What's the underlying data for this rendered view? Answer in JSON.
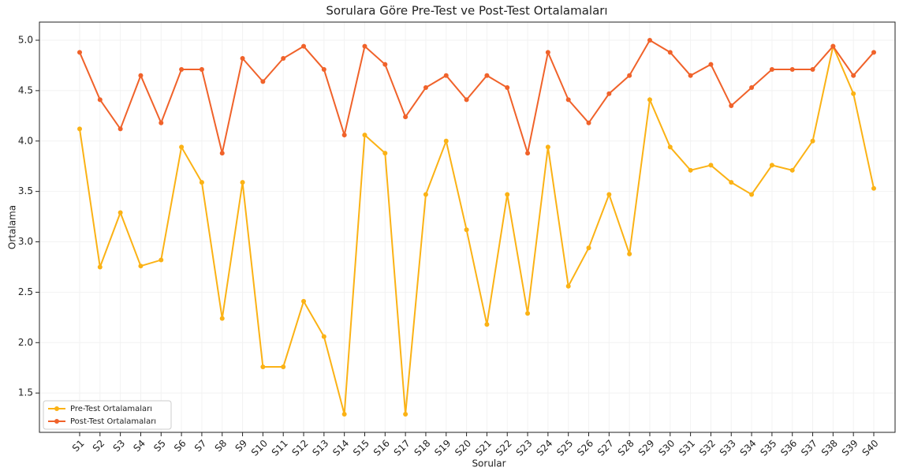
{
  "chart_data": {
    "type": "line",
    "title": "Sorulara Göre Pre-Test ve Post-Test Ortalamaları",
    "x_label": "Sorular",
    "y_label": "Ortalama",
    "categories": [
      "S1",
      "S2",
      "S3",
      "S4",
      "S5",
      "S6",
      "S7",
      "S8",
      "S9",
      "S10",
      "S11",
      "S12",
      "S13",
      "S14",
      "S15",
      "S16",
      "S17",
      "S18",
      "S19",
      "S20",
      "S21",
      "S22",
      "S23",
      "S24",
      "S25",
      "S26",
      "S27",
      "S28",
      "S29",
      "S30",
      "S31",
      "S32",
      "S33",
      "S34",
      "S35",
      "S36",
      "S37",
      "S38",
      "S39",
      "S40"
    ],
    "series": [
      {
        "name": "Pre-Test Ortalamaları",
        "color": "#fbb215",
        "values": [
          4.12,
          2.75,
          3.29,
          2.76,
          2.82,
          3.94,
          3.59,
          2.24,
          3.59,
          1.76,
          1.76,
          2.41,
          2.06,
          1.29,
          4.06,
          3.88,
          1.29,
          3.47,
          4.0,
          3.12,
          2.18,
          3.47,
          2.29,
          3.94,
          2.56,
          2.94,
          3.47,
          2.88,
          4.41,
          3.94,
          3.71,
          3.76,
          3.59,
          3.47,
          3.76,
          3.71,
          4.0,
          4.94,
          4.47,
          3.53
        ]
      },
      {
        "name": "Post-Test Ortalamaları",
        "color": "#f0622a",
        "values": [
          4.88,
          4.41,
          4.12,
          4.65,
          4.18,
          4.71,
          4.71,
          3.88,
          4.82,
          4.59,
          4.82,
          4.94,
          4.71,
          4.06,
          4.94,
          4.76,
          4.24,
          4.53,
          4.65,
          4.41,
          4.65,
          4.53,
          3.88,
          4.88,
          4.41,
          4.18,
          4.47,
          4.65,
          5.0,
          4.88,
          4.65,
          4.76,
          4.35,
          4.53,
          4.71,
          4.71,
          4.71,
          4.94,
          4.65,
          4.88
        ]
      }
    ],
    "ylim": [
      1.11,
      5.18
    ],
    "yticks": [
      {
        "value": 1.5,
        "label": "1.5"
      },
      {
        "value": 2.0,
        "label": "2.0"
      },
      {
        "value": 2.5,
        "label": "2.5"
      },
      {
        "value": 3.0,
        "label": "3.0"
      },
      {
        "value": 3.5,
        "label": "3.5"
      },
      {
        "value": 4.0,
        "label": "4.0"
      },
      {
        "value": 4.5,
        "label": "4.5"
      },
      {
        "value": 5.0,
        "label": "5.0"
      }
    ],
    "grid": true,
    "legend": "lower left"
  }
}
